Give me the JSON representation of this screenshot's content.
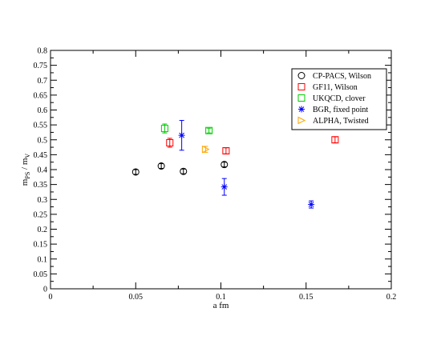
{
  "chart_data": {
    "type": "scatter",
    "xlabel": "a fm",
    "ylabel_main": "m",
    "ylabel_sub1": "PS",
    "ylabel_mid": " / m",
    "ylabel_sub2": "V",
    "xlim": [
      0,
      0.2
    ],
    "ylim": [
      0,
      0.8
    ],
    "x_ticks": [
      "0",
      "0.05",
      "0.1",
      "0.15",
      "0.2"
    ],
    "y_ticks": [
      "0",
      "0.05",
      "0.1",
      "0.15",
      "0.2",
      "0.25",
      "0.3",
      "0.35",
      "0.4",
      "0.45",
      "0.5",
      "0.55",
      "0.6",
      "0.65",
      "0.7",
      "0.75",
      "0.8"
    ],
    "grid": false,
    "legend_position": "top-right",
    "series": [
      {
        "name": "CP-PACS, Wilson",
        "marker": "circle",
        "color": "#000000",
        "points": [
          {
            "x": 0.05,
            "y": 0.392,
            "err": 0.008
          },
          {
            "x": 0.065,
            "y": 0.412,
            "err": 0.008
          },
          {
            "x": 0.078,
            "y": 0.394,
            "err": 0.008
          },
          {
            "x": 0.102,
            "y": 0.417,
            "err": 0.008
          }
        ]
      },
      {
        "name": "GF11, Wilson",
        "marker": "square",
        "color": "#ff0000",
        "points": [
          {
            "x": 0.07,
            "y": 0.49,
            "err": 0.015
          },
          {
            "x": 0.103,
            "y": 0.463,
            "err": 0.01
          },
          {
            "x": 0.167,
            "y": 0.5,
            "err": 0.01
          }
        ]
      },
      {
        "name": "UKQCD, clover",
        "marker": "square",
        "color": "#00cc00",
        "points": [
          {
            "x": 0.067,
            "y": 0.538,
            "err": 0.015
          },
          {
            "x": 0.093,
            "y": 0.531,
            "err": 0.008
          }
        ]
      },
      {
        "name": "BGR, fixed point",
        "marker": "asterisk",
        "color": "#0000ff",
        "points": [
          {
            "x": 0.077,
            "y": 0.515,
            "err": 0.05
          },
          {
            "x": 0.102,
            "y": 0.342,
            "err": 0.028
          },
          {
            "x": 0.153,
            "y": 0.283,
            "err": 0.012
          }
        ]
      },
      {
        "name": "ALPHA, Twisted",
        "marker": "triangle-right",
        "color": "#ffa500",
        "points": [
          {
            "x": 0.091,
            "y": 0.468,
            "err": 0.01
          }
        ]
      }
    ]
  }
}
